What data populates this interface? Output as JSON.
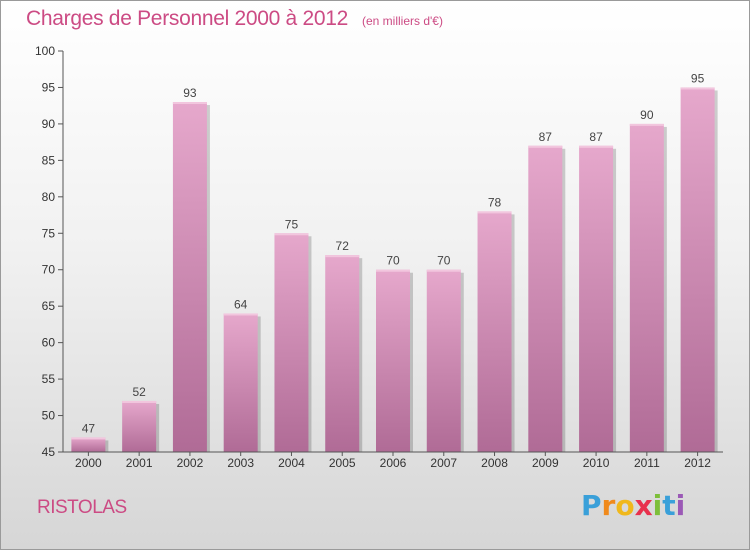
{
  "header": {
    "title": "Charges de Personnel 2000 à 2012",
    "subtitle": "(en milliers d'€)"
  },
  "commune": "RISTOLAS",
  "brand": {
    "letters": [
      "P",
      "r",
      "o",
      "x",
      "i",
      "t",
      "i"
    ]
  },
  "colors": {
    "bar_top": "#e6a8cc",
    "bar_bottom": "#b06b96",
    "title": "#cc4b84",
    "axis": "#555555"
  },
  "chart_data": {
    "type": "bar",
    "categories": [
      "2000",
      "2001",
      "2002",
      "2003",
      "2004",
      "2005",
      "2006",
      "2007",
      "2008",
      "2009",
      "2010",
      "2011",
      "2012"
    ],
    "values": [
      47,
      52,
      93,
      64,
      75,
      72,
      70,
      70,
      78,
      87,
      87,
      90,
      95
    ],
    "data_labels": [
      "47",
      "52",
      "93",
      "64",
      "75",
      "72",
      "70",
      "70",
      "78",
      "87",
      "87",
      "90",
      "95"
    ],
    "title": "Charges de Personnel 2000 à 2012",
    "ylim": [
      45,
      100
    ],
    "yticks": [
      "45",
      "50",
      "55",
      "60",
      "65",
      "70",
      "75",
      "80",
      "85",
      "90",
      "95",
      "100"
    ],
    "grid": false,
    "legend": "none"
  }
}
